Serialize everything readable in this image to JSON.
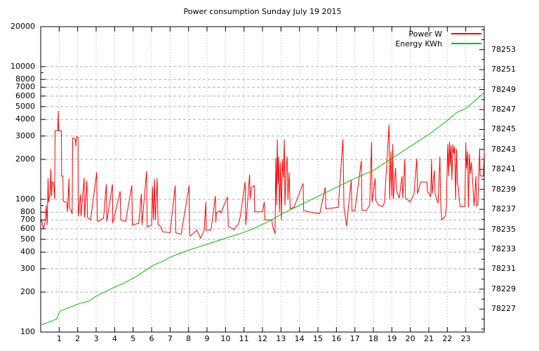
{
  "chart_data": {
    "type": "line",
    "title": "Power consumption Sunday July 19 2015",
    "legend": {
      "position": "top-right-inside",
      "frame": false
    },
    "grid": {
      "on": true,
      "color": "#b0b0b0"
    },
    "x_axis": {
      "min": 0,
      "max": 24,
      "unit": "hour",
      "tick_labels": [
        "1",
        "2",
        "3",
        "4",
        "5",
        "6",
        "7",
        "8",
        "9",
        "10",
        "11",
        "12",
        "13",
        "14",
        "15",
        "16",
        "17",
        "18",
        "19",
        "20",
        "21",
        "22",
        "23"
      ]
    },
    "y_left": {
      "scale": "log",
      "min": 100,
      "max": 20000,
      "unit": "W",
      "tick_labels": [
        "100",
        "200",
        "300",
        "400",
        "500",
        "600",
        "700",
        "800",
        "1000",
        "2000",
        "3000",
        "4000",
        "5000",
        "6000",
        "7000",
        "8000",
        "10000",
        "20000"
      ],
      "tick_values": [
        100,
        200,
        300,
        400,
        500,
        600,
        700,
        800,
        1000,
        2000,
        3000,
        4000,
        5000,
        6000,
        7000,
        8000,
        10000,
        20000
      ],
      "minor_ticks": [
        900,
        9000
      ]
    },
    "y_right": {
      "scale": "linear",
      "min": 78224.7,
      "max": 78255.3,
      "unit": "KWh",
      "tick_labels": [
        "78227",
        "78229",
        "78231",
        "78233",
        "78235",
        "78237",
        "78239",
        "78241",
        "78243",
        "78245",
        "78247",
        "78249",
        "78251",
        "78253"
      ],
      "tick_values": [
        78227,
        78229,
        78231,
        78233,
        78235,
        78237,
        78239,
        78241,
        78243,
        78245,
        78247,
        78249,
        78251,
        78253
      ],
      "minor_step": 1
    },
    "series": [
      {
        "name": "Power W",
        "color": "#ff0000",
        "axis": "left",
        "points": [
          [
            0.0,
            660
          ],
          [
            0.05,
            700
          ],
          [
            0.1,
            640
          ],
          [
            0.15,
            600
          ],
          [
            0.2,
            640
          ],
          [
            0.25,
            700
          ],
          [
            0.3,
            900
          ],
          [
            0.35,
            640
          ],
          [
            0.4,
            1440
          ],
          [
            0.43,
            950
          ],
          [
            0.5,
            1100
          ],
          [
            0.55,
            1700
          ],
          [
            0.58,
            1050
          ],
          [
            0.63,
            1350
          ],
          [
            0.7,
            1330
          ],
          [
            0.75,
            1000
          ],
          [
            0.78,
            3290
          ],
          [
            0.92,
            3290
          ],
          [
            0.95,
            4640
          ],
          [
            0.97,
            3290
          ],
          [
            1.12,
            3290
          ],
          [
            1.13,
            1500
          ],
          [
            1.2,
            1500
          ],
          [
            1.22,
            965
          ],
          [
            1.4,
            950
          ],
          [
            1.45,
            810
          ],
          [
            1.53,
            1440
          ],
          [
            1.55,
            880
          ],
          [
            1.7,
            780
          ],
          [
            1.73,
            2900
          ],
          [
            1.88,
            2820
          ],
          [
            1.9,
            2500
          ],
          [
            1.93,
            2950
          ],
          [
            2.02,
            2950
          ],
          [
            2.03,
            745
          ],
          [
            2.15,
            1090
          ],
          [
            2.18,
            745
          ],
          [
            2.35,
            1450
          ],
          [
            2.37,
            730
          ],
          [
            2.5,
            1380
          ],
          [
            2.53,
            730
          ],
          [
            2.7,
            700
          ],
          [
            3.03,
            1600
          ],
          [
            3.06,
            700
          ],
          [
            3.1,
            680
          ],
          [
            3.4,
            720
          ],
          [
            3.55,
            1300
          ],
          [
            3.58,
            680
          ],
          [
            3.88,
            1300
          ],
          [
            3.9,
            660
          ],
          [
            4.3,
            1150
          ],
          [
            4.33,
            700
          ],
          [
            4.6,
            680
          ],
          [
            4.93,
            1270
          ],
          [
            4.96,
            640
          ],
          [
            5.3,
            660
          ],
          [
            5.45,
            1100
          ],
          [
            5.48,
            640
          ],
          [
            5.73,
            1630
          ],
          [
            5.76,
            620
          ],
          [
            6.0,
            640
          ],
          [
            6.05,
            1250
          ],
          [
            6.1,
            700
          ],
          [
            6.15,
            1430
          ],
          [
            6.2,
            700
          ],
          [
            6.3,
            1450
          ],
          [
            6.35,
            650
          ],
          [
            6.5,
            620
          ],
          [
            6.6,
            570
          ],
          [
            7.0,
            560
          ],
          [
            7.28,
            1270
          ],
          [
            7.31,
            560
          ],
          [
            7.6,
            545
          ],
          [
            8.03,
            1270
          ],
          [
            8.06,
            545
          ],
          [
            8.1,
            530
          ],
          [
            8.45,
            585
          ],
          [
            8.65,
            510
          ],
          [
            8.85,
            585
          ],
          [
            8.93,
            955
          ],
          [
            8.96,
            585
          ],
          [
            9.2,
            585
          ],
          [
            9.25,
            640
          ],
          [
            9.45,
            1060
          ],
          [
            9.48,
            670
          ],
          [
            9.5,
            790
          ],
          [
            9.7,
            820
          ],
          [
            9.75,
            790
          ],
          [
            10.1,
            1040
          ],
          [
            10.13,
            790
          ],
          [
            10.15,
            630
          ],
          [
            10.45,
            590
          ],
          [
            10.6,
            630
          ],
          [
            10.7,
            650
          ],
          [
            10.8,
            745
          ],
          [
            11.06,
            1350
          ],
          [
            11.09,
            745
          ],
          [
            11.1,
            640
          ],
          [
            11.3,
            1530
          ],
          [
            11.33,
            1000
          ],
          [
            11.4,
            1225
          ],
          [
            11.55,
            1270
          ],
          [
            11.58,
            805
          ],
          [
            12.0,
            805
          ],
          [
            12.1,
            955
          ],
          [
            12.13,
            700
          ],
          [
            12.5,
            700
          ],
          [
            12.55,
            630
          ],
          [
            12.68,
            550
          ],
          [
            12.72,
            2050
          ],
          [
            12.76,
            900
          ],
          [
            12.8,
            2830
          ],
          [
            12.84,
            1300
          ],
          [
            12.88,
            2100
          ],
          [
            12.92,
            800
          ],
          [
            12.98,
            1900
          ],
          [
            13.02,
            700
          ],
          [
            13.08,
            2000
          ],
          [
            13.13,
            1450
          ],
          [
            13.18,
            2830
          ],
          [
            13.22,
            900
          ],
          [
            13.28,
            1700
          ],
          [
            13.33,
            2100
          ],
          [
            13.38,
            1000
          ],
          [
            13.44,
            1600
          ],
          [
            13.5,
            850
          ],
          [
            13.7,
            870
          ],
          [
            14.2,
            1320
          ],
          [
            14.23,
            820
          ],
          [
            14.6,
            800
          ],
          [
            15.1,
            780
          ],
          [
            15.4,
            1230
          ],
          [
            15.43,
            850
          ],
          [
            15.8,
            860
          ],
          [
            16.1,
            870
          ],
          [
            16.35,
            2830
          ],
          [
            16.38,
            1700
          ],
          [
            16.41,
            870
          ],
          [
            16.55,
            630
          ],
          [
            16.8,
            1390
          ],
          [
            16.84,
            820
          ],
          [
            17.0,
            820
          ],
          [
            17.35,
            1960
          ],
          [
            17.38,
            830
          ],
          [
            17.6,
            820
          ],
          [
            17.8,
            900
          ],
          [
            17.9,
            2700
          ],
          [
            17.93,
            950
          ],
          [
            18.1,
            1440
          ],
          [
            18.13,
            980
          ],
          [
            18.3,
            900
          ],
          [
            18.5,
            880
          ],
          [
            18.6,
            950
          ],
          [
            18.85,
            3660
          ],
          [
            18.88,
            1000
          ],
          [
            18.95,
            2290
          ],
          [
            19.0,
            1050
          ],
          [
            19.05,
            2600
          ],
          [
            19.08,
            1000
          ],
          [
            19.2,
            1730
          ],
          [
            19.25,
            1170
          ],
          [
            19.4,
            1020
          ],
          [
            19.55,
            1500
          ],
          [
            19.6,
            1020
          ],
          [
            19.7,
            2010
          ],
          [
            19.74,
            1020
          ],
          [
            20.0,
            955
          ],
          [
            20.2,
            1100
          ],
          [
            20.35,
            2030
          ],
          [
            20.39,
            1100
          ],
          [
            20.55,
            1350
          ],
          [
            20.9,
            1350
          ],
          [
            20.92,
            1150
          ],
          [
            21.1,
            1050
          ],
          [
            21.15,
            2010
          ],
          [
            21.18,
            1100
          ],
          [
            21.3,
            1650
          ],
          [
            21.34,
            1100
          ],
          [
            21.5,
            935
          ],
          [
            21.6,
            2100
          ],
          [
            21.64,
            950
          ],
          [
            21.7,
            700
          ],
          [
            21.9,
            750
          ],
          [
            21.95,
            880
          ],
          [
            22.0,
            1900
          ],
          [
            22.03,
            2600
          ],
          [
            22.07,
            1500
          ],
          [
            22.12,
            2730
          ],
          [
            22.16,
            1800
          ],
          [
            22.2,
            2550
          ],
          [
            22.25,
            1400
          ],
          [
            22.3,
            2600
          ],
          [
            22.35,
            2200
          ],
          [
            22.4,
            2500
          ],
          [
            22.45,
            1000
          ],
          [
            22.5,
            2400
          ],
          [
            22.55,
            1300
          ],
          [
            22.6,
            1250
          ],
          [
            22.65,
            995
          ],
          [
            22.7,
            880
          ],
          [
            22.95,
            880
          ],
          [
            23.0,
            2670
          ],
          [
            23.04,
            1700
          ],
          [
            23.1,
            2300
          ],
          [
            23.14,
            870
          ],
          [
            23.2,
            2200
          ],
          [
            23.25,
            1550
          ],
          [
            23.3,
            1900
          ],
          [
            23.35,
            1550
          ],
          [
            23.45,
            890
          ],
          [
            23.55,
            1500
          ],
          [
            23.58,
            890
          ],
          [
            23.65,
            900
          ],
          [
            23.75,
            2420
          ],
          [
            23.78,
            1500
          ],
          [
            23.95,
            1500
          ],
          [
            24.0,
            2350
          ]
        ]
      },
      {
        "name": "Energy KWh",
        "color": "#00c000",
        "axis": "right",
        "points": [
          [
            0,
            78225.4
          ],
          [
            0.3,
            78225.6
          ],
          [
            0.6,
            78225.8
          ],
          [
            0.85,
            78226.0
          ],
          [
            0.95,
            78226.4
          ],
          [
            1.05,
            78226.8
          ],
          [
            1.3,
            78227.0
          ],
          [
            1.6,
            78227.2
          ],
          [
            2.0,
            78227.5
          ],
          [
            2.6,
            78227.8
          ],
          [
            2.85,
            78228.1
          ],
          [
            3.0,
            78228.3
          ],
          [
            3.5,
            78228.75
          ],
          [
            4.0,
            78229.2
          ],
          [
            4.5,
            78229.6
          ],
          [
            4.8,
            78229.9
          ],
          [
            5.2,
            78230.3
          ],
          [
            5.6,
            78230.8
          ],
          [
            6.1,
            78231.4
          ],
          [
            6.6,
            78231.8
          ],
          [
            7.0,
            78232.2
          ],
          [
            7.5,
            78232.55
          ],
          [
            8.0,
            78232.9
          ],
          [
            8.5,
            78233.2
          ],
          [
            9.0,
            78233.5
          ],
          [
            9.5,
            78233.8
          ],
          [
            10.0,
            78234.1
          ],
          [
            10.5,
            78234.4
          ],
          [
            11.0,
            78234.7
          ],
          [
            11.5,
            78235.05
          ],
          [
            12.0,
            78235.5
          ],
          [
            12.5,
            78235.95
          ],
          [
            13.0,
            78236.5
          ],
          [
            13.5,
            78236.95
          ],
          [
            14.0,
            78237.4
          ],
          [
            14.5,
            78237.85
          ],
          [
            15.0,
            78238.3
          ],
          [
            15.5,
            78238.75
          ],
          [
            16.0,
            78239.2
          ],
          [
            16.5,
            78239.65
          ],
          [
            17.0,
            78240.1
          ],
          [
            17.5,
            78240.5
          ],
          [
            18.0,
            78240.9
          ],
          [
            18.5,
            78241.5
          ],
          [
            19.0,
            78242.1
          ],
          [
            19.5,
            78242.7
          ],
          [
            20.0,
            78243.3
          ],
          [
            20.5,
            78243.9
          ],
          [
            21.0,
            78244.5
          ],
          [
            21.5,
            78245.2
          ],
          [
            22.0,
            78245.9
          ],
          [
            22.5,
            78246.7
          ],
          [
            23.0,
            78247.1
          ],
          [
            23.5,
            78247.9
          ],
          [
            24.0,
            78248.7
          ]
        ]
      }
    ]
  }
}
